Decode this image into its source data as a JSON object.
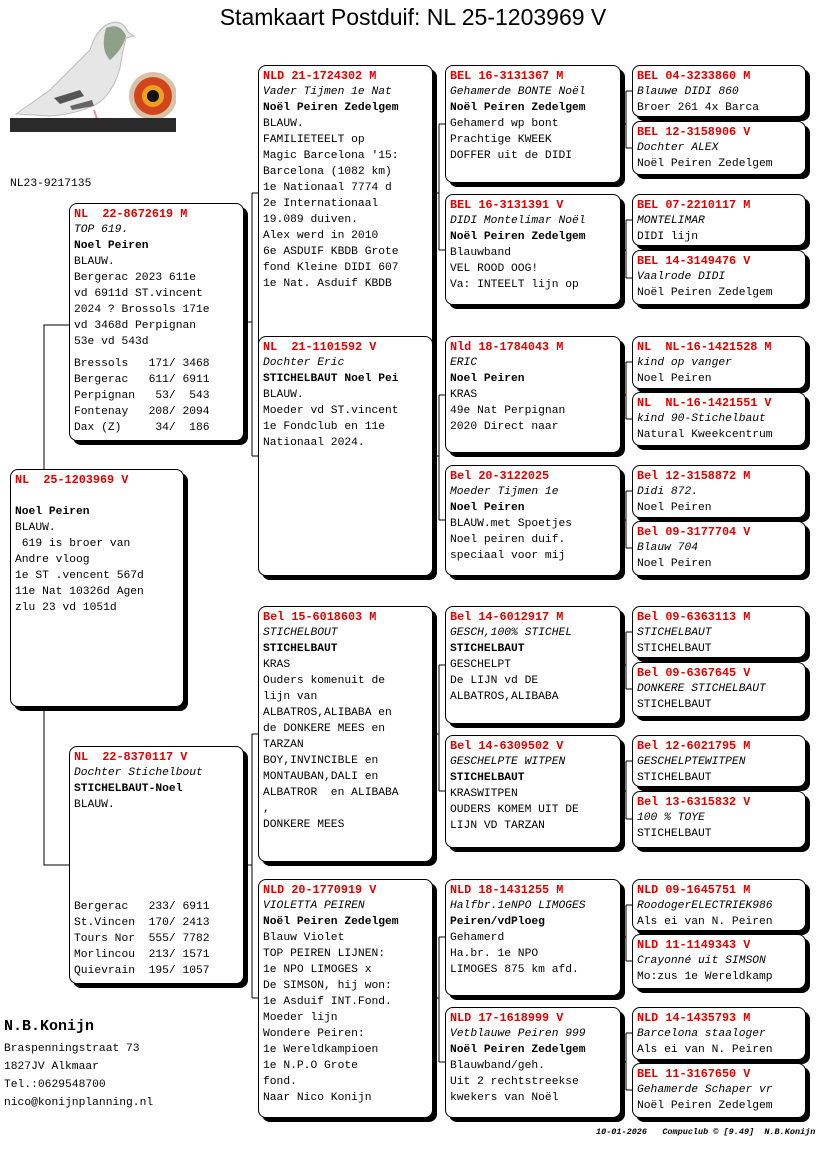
{
  "title": "Stamkaart Postduif: NL  25-1203969 V",
  "ring_reference": "NL23-9217135",
  "logo": {
    "description_icon": "pigeon-photo-with-eye"
  },
  "colors": {
    "ring_number": "#e00000",
    "shadow": "#000000"
  },
  "subject": {
    "ring": "NL  25-1203969 V",
    "name": "",
    "owner": "Noel Peiren",
    "lines": [
      "BLAUW.",
      " 619 is broer van",
      "Andre vloog",
      "1e ST .vencent 567d",
      "11e Nat 10326d Agen",
      "zlu 23 vd 1051d"
    ]
  },
  "father": {
    "ring": "NL  22-8672619 M",
    "name": "TOP 619.",
    "owner": "Noel Peiren",
    "lines": [
      "BLAUW.",
      "Bergerac 2023 611e",
      "vd 6911d ST.vincent",
      "2024 ? Brossols 171e",
      "vd 3468d Perpignan",
      "53e vd 543d"
    ],
    "results": [
      "Bressols   171/ 3468",
      "Bergerac   611/ 6911",
      "Perpignan   53/  543",
      "Fontenay   208/ 2094",
      "Dax (Z)     34/  186"
    ]
  },
  "mother": {
    "ring": "NL  22-8370117 V",
    "name": "Dochter Stichelbout",
    "owner": "STICHELBAUT-Noel",
    "lines": [
      "BLAUW."
    ],
    "results": [
      "Bergerac   233/ 6911",
      "St.Vincen  170/ 2413",
      "Tours Nor  555/ 7782",
      "Morlincou  213/ 1571",
      "Quievrain  195/ 1057"
    ]
  },
  "gen2": [
    {
      "ring": "NLD 21-1724302 M",
      "name": "Vader Tijmen 1e Nat",
      "owner": "Noël Peiren Zedelgem",
      "lines": [
        "BLAUW.",
        "FAMILIETEELT op",
        "Magic Barcelona '15:",
        "Barcelona (1082 km)",
        "1e Nationaal 7774 d",
        "2e Internationaal",
        "19.089 duiven.",
        "Alex werd in 2010",
        "6e ASDUIF KBDB Grote",
        "fond Kleine DIDI 607",
        "1e Nat. Asduif KBDB"
      ]
    },
    {
      "ring": "NL  21-1101592 V",
      "name": "Dochter Eric",
      "owner": "STICHELBAUT Noel Pei",
      "lines": [
        "BLAUW.",
        "Moeder vd ST.vincent",
        "1e Fondclub en 11e",
        "Nationaal 2024."
      ]
    },
    {
      "ring": "Bel 15-6018603 M",
      "name": "STICHELBOUT",
      "owner": "STICHELBAUT",
      "lines": [
        "KRAS",
        "Ouders komenuit de",
        "lijn van",
        "ALBATROS,ALIBABA en",
        "de DONKERE MEES en",
        "TARZAN",
        "BOY,INVINCIBLE en",
        "MONTAUBAN,DALI en",
        "ALBATROR  en ALIBABA",
        ",",
        "DONKERE MEES"
      ]
    },
    {
      "ring": "NLD 20-1770919 V",
      "name": "VIOLETTA PEIREN",
      "owner": "Noël Peiren Zedelgem",
      "lines": [
        "Blauw Violet",
        "TOP PEIREN LIJNEN:",
        "1e NPO LIMOGES x",
        "De SIMSON, hij won:",
        "1e Asduif INT.Fond.",
        "Moeder lijn",
        "Wondere Peiren:",
        "1e Wereldkampioen",
        "1e N.P.O Grote",
        "fond.",
        "Naar Nico Konijn"
      ]
    }
  ],
  "gen3": [
    {
      "ring": "BEL 16-3131367 M",
      "name": "Gehamerde BONTE Noël",
      "owner": "Noël Peiren Zedelgem",
      "lines": [
        "Gehamerd wp bont",
        "Prachtige KWEEK",
        "DOFFER uit de DIDI"
      ]
    },
    {
      "ring": "BEL 16-3131391 V",
      "name": "DIDI Montelimar Noël",
      "owner": "Noël Peiren Zedelgem",
      "lines": [
        "Blauwband",
        "VEL ROOD OOG!",
        "Va: INTEELT lijn op"
      ]
    },
    {
      "ring": "Nld 18-1784043 M",
      "name": "ERIC",
      "owner": "Noel Peiren",
      "lines": [
        "KRAS",
        "49e Nat Perpignan",
        "2020 Direct naar"
      ]
    },
    {
      "ring": "Bel 20-3122025",
      "name": "Moeder Tijmen 1e",
      "owner": "Noel Peiren",
      "lines": [
        "BLAUW.met Spoetjes",
        "Noel peiren duif.",
        "speciaal voor mij"
      ]
    },
    {
      "ring": "Bel 14-6012917 M",
      "name": "GESCH,100% STICHEL",
      "owner": "STICHELBAUT",
      "lines": [
        "GESCHELPT",
        "De LIJN vd DE",
        "ALBATROS,ALIBABA"
      ]
    },
    {
      "ring": "Bel 14-6309502 V",
      "name": "GESCHELPTE WITPEN",
      "owner": "STICHELBAUT",
      "lines": [
        "KRASWITPEN",
        "OUDERS KOMEM UIT DE",
        "LIJN VD TARZAN"
      ]
    },
    {
      "ring": "NLD 18-1431255 M",
      "name": "Halfbr.1eNPO LIMOGES",
      "owner": "Peiren/vdPloeg",
      "lines": [
        "Gehamerd",
        "Ha.br. 1e NPO",
        "LIMOGES 875 km afd."
      ]
    },
    {
      "ring": "NLD 17-1618999 V",
      "name": "Vetblauwe Peiren 999",
      "owner": "Noël Peiren Zedelgem",
      "lines": [
        "Blauwband/geh.",
        "Uit 2 rechtstreekse",
        "kwekers van Noël"
      ]
    }
  ],
  "gen4": [
    {
      "ring": "BEL 04-3233860 M",
      "name": "Blauwe DIDI 860",
      "owner": "Broer 261 4x Barca"
    },
    {
      "ring": "BEL 12-3158906 V",
      "name": "Dochter ALEX",
      "owner": "Noël Peiren Zedelgem"
    },
    {
      "ring": "BEL 07-2210117 M",
      "name": "MONTELIMAR",
      "owner": "DIDI lijn"
    },
    {
      "ring": "BEL 14-3149476 V",
      "name": "Vaalrode DIDI",
      "owner": "Noël Peiren Zedelgem"
    },
    {
      "ring": "NL  NL-16-1421528 M",
      "name": "kind op vanger",
      "owner": "Noel Peiren"
    },
    {
      "ring": "NL  NL-16-1421551 V",
      "name": "kind 90-Stichelbaut",
      "owner": "Natural Kweekcentrum"
    },
    {
      "ring": "Bel 12-3158872 M",
      "name": "Didi 872.",
      "owner": "Noel Peiren"
    },
    {
      "ring": "Bel 09-3177704 V",
      "name": "Blauw 704",
      "owner": "Noel Peiren"
    },
    {
      "ring": "Bel 09-6363113 M",
      "name": "STICHELBAUT",
      "owner": "STICHELBAUT"
    },
    {
      "ring": "Bel 09-6367645 V",
      "name": "DONKERE STICHELBAUT",
      "owner": "STICHELBAUT"
    },
    {
      "ring": "Bel 12-6021795 M",
      "name": "GESCHELPTEWITPEN",
      "owner": "STICHELBAUT"
    },
    {
      "ring": "Bel 13-6315832 V",
      "name": "100 % TOYE",
      "owner": "STICHELBAUT"
    },
    {
      "ring": "NLD 09-1645751 M",
      "name": "RoodogerELECTRIEK986",
      "owner": "Als ei van N. Peiren"
    },
    {
      "ring": "NLD 11-1149343 V",
      "name": "Crayonné uit SIMSON",
      "owner": "Mo:zus 1e Wereldkamp"
    },
    {
      "ring": "NLD 14-1435793 M",
      "name": "Barcelona staaloger",
      "owner": "Als ei van N. Peiren"
    },
    {
      "ring": "BEL 11-3167650 V",
      "name": "Gehamerde Schaper vr",
      "owner": "Noël Peiren Zedelgem"
    }
  ],
  "breeder": {
    "name": "N.B.Konijn",
    "street": "Braspenningstraat 73",
    "city": "1827JV  Alkmaar",
    "phone": "Tel.:0629548700",
    "email": "nico@konijnplanning.nl"
  },
  "footer": {
    "date": "10-01-2026",
    "software": "Compuclub © [9.49]",
    "author": "N.B.Konijn"
  }
}
